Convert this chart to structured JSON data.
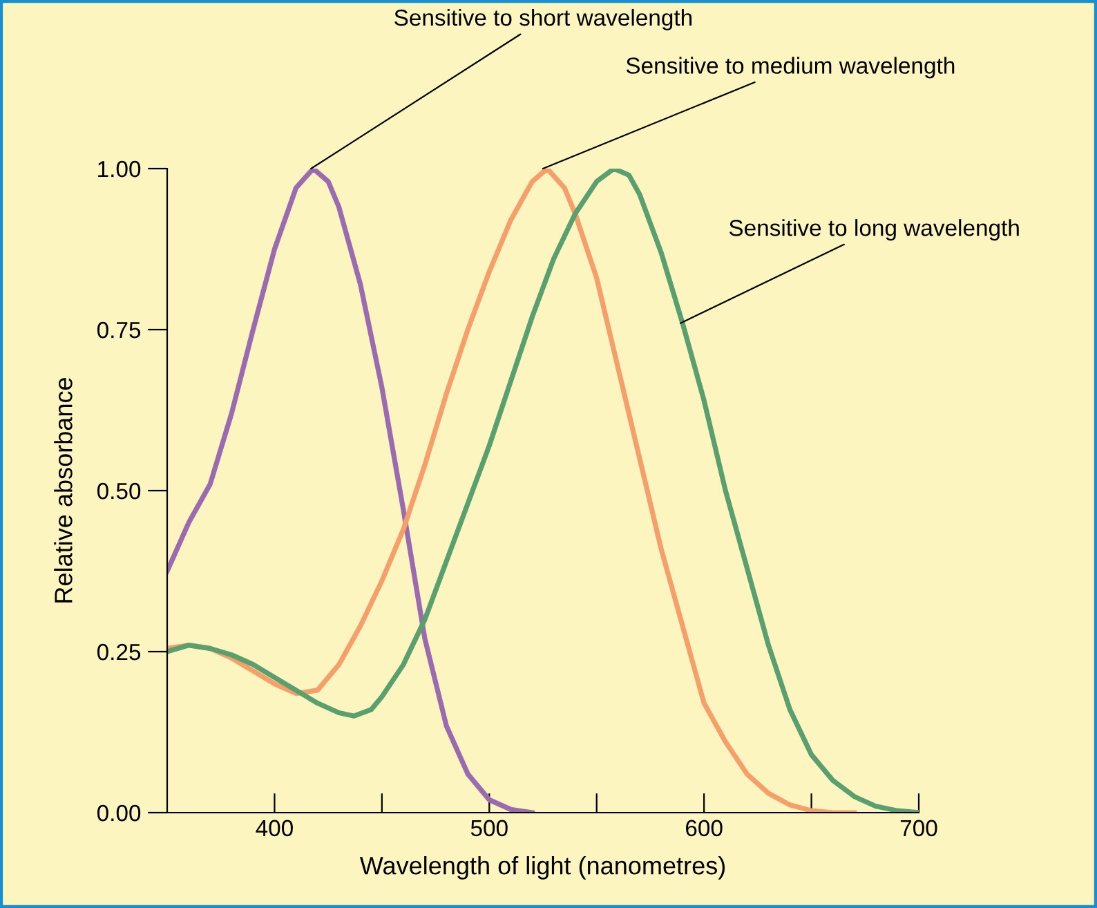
{
  "chart_data": {
    "type": "line",
    "xlabel": "Wavelength of light (nanometres)",
    "ylabel": "Relative absorbance",
    "xlim": [
      350,
      700
    ],
    "ylim": [
      0,
      1.0
    ],
    "xticks": [
      400,
      {
        "value": 450,
        "label": null
      },
      500,
      {
        "value": 550,
        "label": null
      },
      600,
      {
        "value": 650,
        "label": null
      },
      700
    ],
    "yticks": [
      {
        "value": 0,
        "label": "0.00"
      },
      {
        "value": 0.25,
        "label": "0.25"
      },
      {
        "value": 0.5,
        "label": "0.50"
      },
      {
        "value": 0.75,
        "label": "0.75"
      },
      {
        "value": 1.0,
        "label": "1.00"
      }
    ],
    "grid": false,
    "legend": false,
    "marker": "none",
    "line_style": "solid",
    "series": [
      {
        "color": "#9b6bb0",
        "x": [
          350,
          360,
          370,
          380,
          390,
          400,
          410,
          418,
          425,
          430,
          440,
          450,
          460,
          470,
          480,
          490,
          500,
          510,
          520
        ],
        "values": [
          0.375,
          0.45,
          0.51,
          0.62,
          0.75,
          0.875,
          0.97,
          1.0,
          0.98,
          0.94,
          0.82,
          0.66,
          0.47,
          0.27,
          0.135,
          0.06,
          0.02,
          0.005,
          0.0
        ]
      },
      {
        "color": "#f5a06a",
        "x": [
          350,
          360,
          370,
          380,
          390,
          400,
          410,
          420,
          430,
          440,
          450,
          460,
          470,
          480,
          490,
          500,
          510,
          520,
          527,
          535,
          540,
          550,
          560,
          570,
          580,
          590,
          600,
          610,
          620,
          630,
          640,
          650,
          660,
          670
        ],
        "values": [
          0.255,
          0.26,
          0.255,
          0.24,
          0.22,
          0.2,
          0.185,
          0.19,
          0.23,
          0.29,
          0.36,
          0.44,
          0.54,
          0.65,
          0.75,
          0.84,
          0.92,
          0.98,
          1.0,
          0.97,
          0.93,
          0.83,
          0.69,
          0.55,
          0.41,
          0.29,
          0.17,
          0.11,
          0.06,
          0.03,
          0.012,
          0.003,
          0.0,
          0.0
        ]
      },
      {
        "color": "#5aa06e",
        "x": [
          350,
          360,
          370,
          380,
          390,
          400,
          410,
          420,
          430,
          437,
          445,
          450,
          460,
          470,
          480,
          490,
          500,
          510,
          520,
          530,
          540,
          550,
          558,
          565,
          570,
          580,
          590,
          600,
          610,
          620,
          630,
          640,
          650,
          660,
          670,
          680,
          690,
          700
        ],
        "values": [
          0.25,
          0.26,
          0.255,
          0.245,
          0.23,
          0.21,
          0.19,
          0.17,
          0.155,
          0.15,
          0.16,
          0.18,
          0.23,
          0.3,
          0.39,
          0.48,
          0.57,
          0.67,
          0.77,
          0.86,
          0.93,
          0.98,
          1.0,
          0.99,
          0.96,
          0.87,
          0.76,
          0.64,
          0.5,
          0.38,
          0.26,
          0.16,
          0.09,
          0.05,
          0.025,
          0.01,
          0.003,
          0.0
        ]
      }
    ],
    "annotations": [
      {
        "text": "Sensitive to short wavelength",
        "x": 417,
        "y": 1.0
      },
      {
        "text": "Sensitive to medium wavelength",
        "x": 525,
        "y": 1.0
      },
      {
        "text": "Sensitive to long wavelength",
        "x": 589,
        "y": 0.76
      }
    ]
  }
}
